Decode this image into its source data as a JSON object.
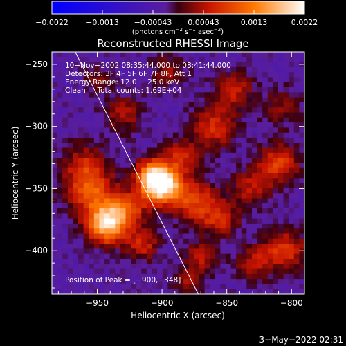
{
  "chart_data": {
    "type": "heatmap",
    "title": "Reconstructed RHESSI Image",
    "xlabel": "Heliocentric X (arcsec)",
    "ylabel": "Heliocentric Y (arcsec)",
    "xlim": [
      -985,
      -790
    ],
    "ylim": [
      -435,
      -240
    ],
    "x_ticks": [
      -950,
      -900,
      -850,
      -800
    ],
    "y_ticks": [
      -250,
      -300,
      -350,
      -400
    ],
    "x_tick_labels": [
      "−950",
      "−900",
      "−850",
      "−800"
    ],
    "y_tick_labels": [
      "−250",
      "−300",
      "−350",
      "−400"
    ],
    "colorbar": {
      "range": [
        -0.0022,
        0.0022
      ],
      "tick_labels": [
        "−0.0022",
        "−0.0013",
        "−0.00043",
        "0.00043",
        "0.0013",
        "0.0022"
      ],
      "units_prefix": "(photons cm",
      "units_exp1": "−2",
      "units_mid": " s",
      "units_exp2": "−1",
      "units_mid2": " asec",
      "units_exp3": "−2",
      "units_suffix": ")"
    },
    "annotations": [
      "10−Nov−2002 08:35:44.000 to 08:41:44.000",
      "Detectors: 3F 4F 5F 6F 7F 8F, Att 1",
      "Energy Range: 12.0 − 25.0 keV",
      "Clean     Total counts: 1.69E+04"
    ],
    "peak_label": "Position of Peak = [−900,−348]",
    "peak_position": [
      -900,
      -348
    ],
    "sources": [
      {
        "x": -900,
        "y": -348,
        "amp": 1.0,
        "sigma": 10
      },
      {
        "x": -908,
        "y": -338,
        "amp": 0.55,
        "sigma": 9
      },
      {
        "x": -885,
        "y": -325,
        "amp": 0.35,
        "sigma": 10
      },
      {
        "x": -942,
        "y": -378,
        "amp": 0.9,
        "sigma": 11
      },
      {
        "x": -955,
        "y": -352,
        "amp": 0.5,
        "sigma": 13
      },
      {
        "x": -960,
        "y": -330,
        "amp": 0.3,
        "sigma": 12
      },
      {
        "x": -925,
        "y": -365,
        "amp": 0.4,
        "sigma": 10
      },
      {
        "x": -915,
        "y": -395,
        "amp": 0.35,
        "sigma": 9
      },
      {
        "x": -930,
        "y": -290,
        "amp": 0.3,
        "sigma": 10
      },
      {
        "x": -875,
        "y": -360,
        "amp": 0.45,
        "sigma": 12
      },
      {
        "x": -855,
        "y": -375,
        "amp": 0.35,
        "sigma": 10
      },
      {
        "x": -860,
        "y": -300,
        "amp": 0.4,
        "sigma": 12
      },
      {
        "x": -845,
        "y": -270,
        "amp": 0.35,
        "sigma": 10
      },
      {
        "x": -832,
        "y": -350,
        "amp": 0.3,
        "sigma": 11
      },
      {
        "x": -810,
        "y": -330,
        "amp": 0.45,
        "sigma": 11
      },
      {
        "x": -808,
        "y": -285,
        "amp": 0.2,
        "sigma": 12
      },
      {
        "x": -805,
        "y": -400,
        "amp": 0.45,
        "sigma": 11
      },
      {
        "x": -830,
        "y": -410,
        "amp": 0.3,
        "sigma": 10
      },
      {
        "x": -870,
        "y": -405,
        "amp": 0.3,
        "sigma": 9
      },
      {
        "x": -895,
        "y": -255,
        "amp": 0.25,
        "sigma": 9
      },
      {
        "x": -950,
        "y": -262,
        "amp": 0.2,
        "sigma": 8
      },
      {
        "x": -880,
        "y": -425,
        "amp": 0.25,
        "sigma": 8
      }
    ],
    "limb_line": [
      [
        -967,
        -240
      ],
      [
        -872,
        -435
      ]
    ]
  },
  "timestamp": "3−May−2022 02:31"
}
